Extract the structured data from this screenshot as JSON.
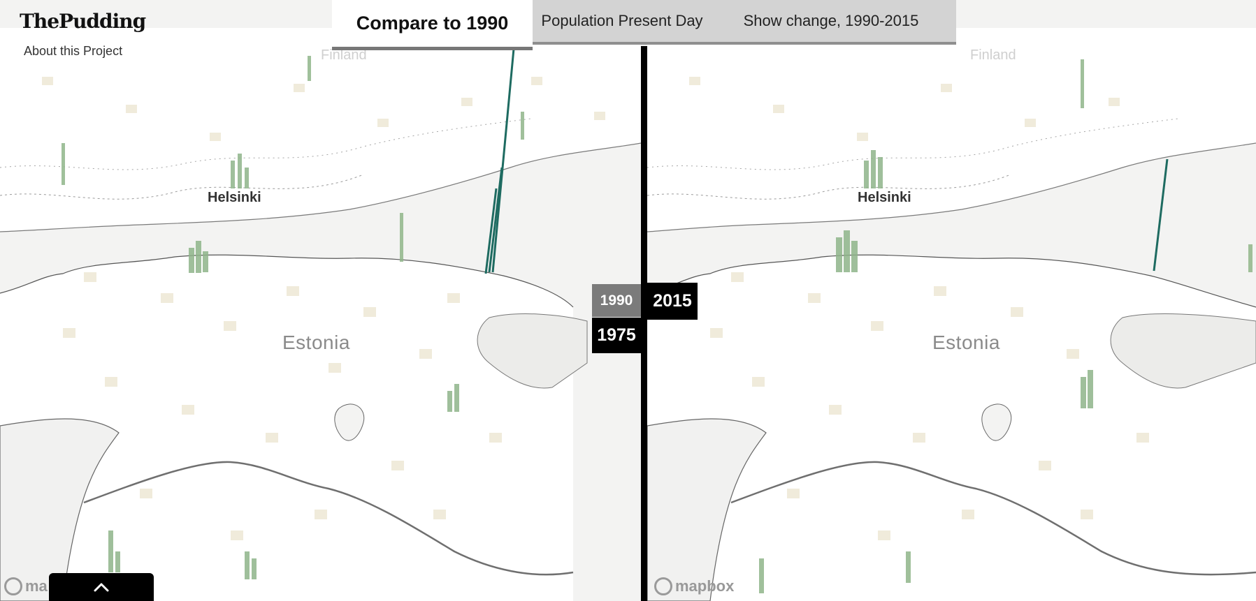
{
  "brand": {
    "logo_text": "ThePudding",
    "about_link": "About this Project"
  },
  "tabs": {
    "active": "Compare to 1990",
    "present": "Population Present Day",
    "change": "Show change, 1990-2015"
  },
  "years": {
    "left_current": "1990",
    "left_alt": "1975",
    "right_current": "2015"
  },
  "map_labels": {
    "left": {
      "city": "Helsinki",
      "country": "Estonia",
      "faint": "Finland"
    },
    "right": {
      "city": "Helsinki",
      "country": "Estonia",
      "faint": "Finland"
    }
  },
  "attribution": {
    "text": "mapbox",
    "left_truncated": "ma"
  },
  "colors": {
    "land": "#ffffff",
    "water": "#f2f2f1",
    "coast": "#4a4a4a",
    "spike_green": "#8fb58a",
    "spike_teal": "#1e6b61",
    "cell_tint": "#efeadb"
  },
  "icons": {
    "drawer_toggle": "chevron-up-icon",
    "mapbox_logo": "mapbox-logo-icon"
  }
}
